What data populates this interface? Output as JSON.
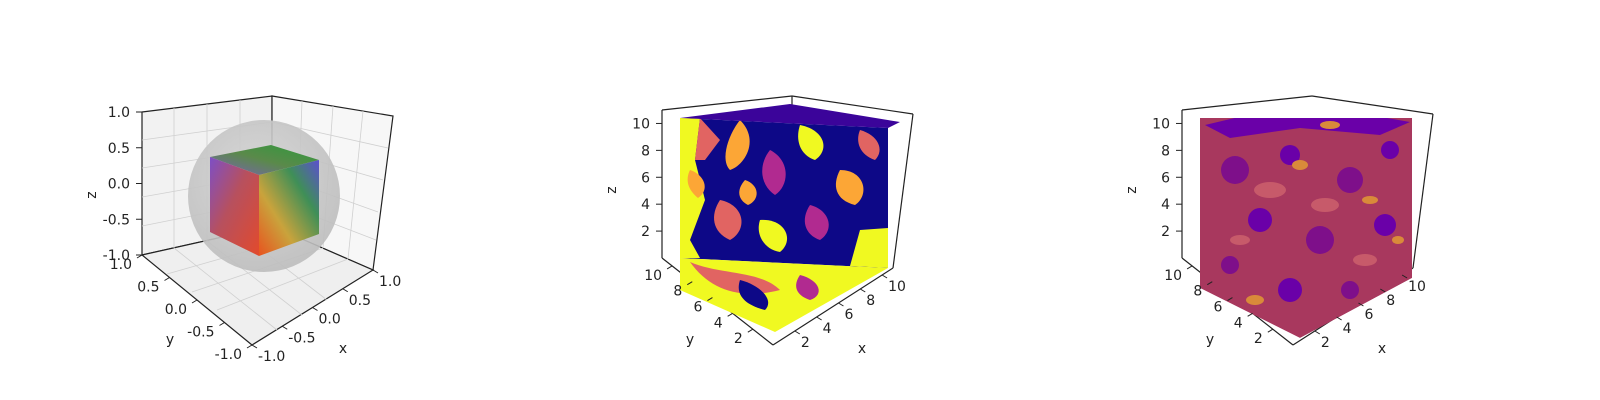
{
  "chart_data": [
    {
      "type": "3d-volume",
      "xlabel": "x",
      "ylabel": "y",
      "zlabel": "z",
      "xlim": [
        -1.0,
        1.0
      ],
      "ylim": [
        -1.0,
        1.0
      ],
      "zlim": [
        -1.0,
        1.0
      ],
      "x_ticks": [
        "-1.0",
        "-0.5",
        "0.0",
        "0.5",
        "1.0"
      ],
      "y_ticks": [
        "-1.0",
        "-0.5",
        "0.0",
        "0.5",
        "1.0"
      ],
      "z_ticks": [
        "-1.0",
        "-0.5",
        "0.0",
        "0.5",
        "1.0"
      ],
      "sphere": {
        "center": [
          0,
          0,
          0
        ],
        "radius": 1.0,
        "color": "#c0c0c0"
      },
      "cube": {
        "min": [
          -0.5,
          -0.5,
          -0.5
        ],
        "max": [
          0.5,
          0.5,
          0.5
        ]
      },
      "grid": true
    },
    {
      "type": "3d-volume",
      "xlabel": "x",
      "ylabel": "y",
      "zlabel": "z",
      "xlim": [
        0,
        11
      ],
      "ylim": [
        0,
        11
      ],
      "zlim": [
        0,
        11
      ],
      "x_ticks": [
        "2",
        "4",
        "6",
        "8",
        "10"
      ],
      "y_ticks": [
        "2",
        "4",
        "6",
        "8",
        "10"
      ],
      "z_ticks": [
        "2",
        "4",
        "6",
        "8",
        "10"
      ],
      "colormap": "plasma",
      "grid": false
    },
    {
      "type": "3d-isosurface",
      "xlabel": "x",
      "ylabel": "y",
      "zlabel": "z",
      "xlim": [
        0,
        11
      ],
      "ylim": [
        0,
        11
      ],
      "zlim": [
        0,
        11
      ],
      "x_ticks": [
        "2",
        "4",
        "6",
        "8",
        "10"
      ],
      "y_ticks": [
        "2",
        "4",
        "6",
        "8",
        "10"
      ],
      "z_ticks": [
        "2",
        "4",
        "6",
        "8",
        "10"
      ],
      "colormap": "plasma",
      "grid": false
    }
  ]
}
